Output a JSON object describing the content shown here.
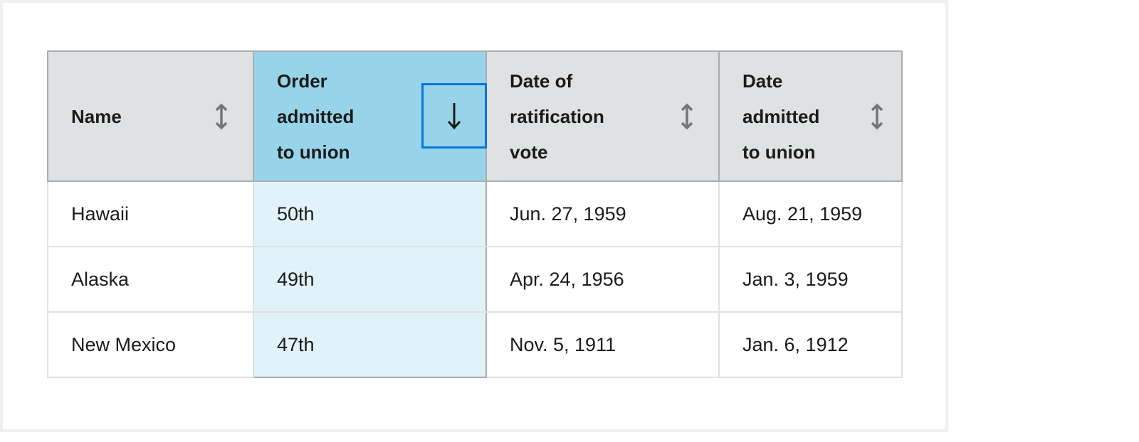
{
  "table": {
    "headers": [
      {
        "label_lines": [
          "Name"
        ],
        "sort_icon": "sort-unsorted-icon"
      },
      {
        "label_lines": [
          "Order",
          "admitted",
          "to union"
        ],
        "sort_icon": "sort-descending-icon",
        "sorted": "descending"
      },
      {
        "label_lines": [
          "Date of",
          "ratification",
          "vote"
        ],
        "sort_icon": "sort-unsorted-icon"
      },
      {
        "label_lines": [
          "Date",
          "admitted",
          "to union"
        ],
        "sort_icon": "sort-unsorted-icon"
      }
    ],
    "rows": [
      [
        "Hawaii",
        "50th",
        "Jun. 27, 1959",
        "Aug. 21, 1959"
      ],
      [
        "Alaska",
        "49th",
        "Apr. 24, 1956",
        "Jan. 3, 1959"
      ],
      [
        "New Mexico",
        "47th",
        "Nov. 5, 1911",
        "Jan. 6, 1912"
      ]
    ]
  },
  "colors": {
    "sorted_header": "#97d4ea",
    "sorted_cell": "#e1f3f8",
    "focus": "#0b74da",
    "header": "#dfe1e2"
  }
}
